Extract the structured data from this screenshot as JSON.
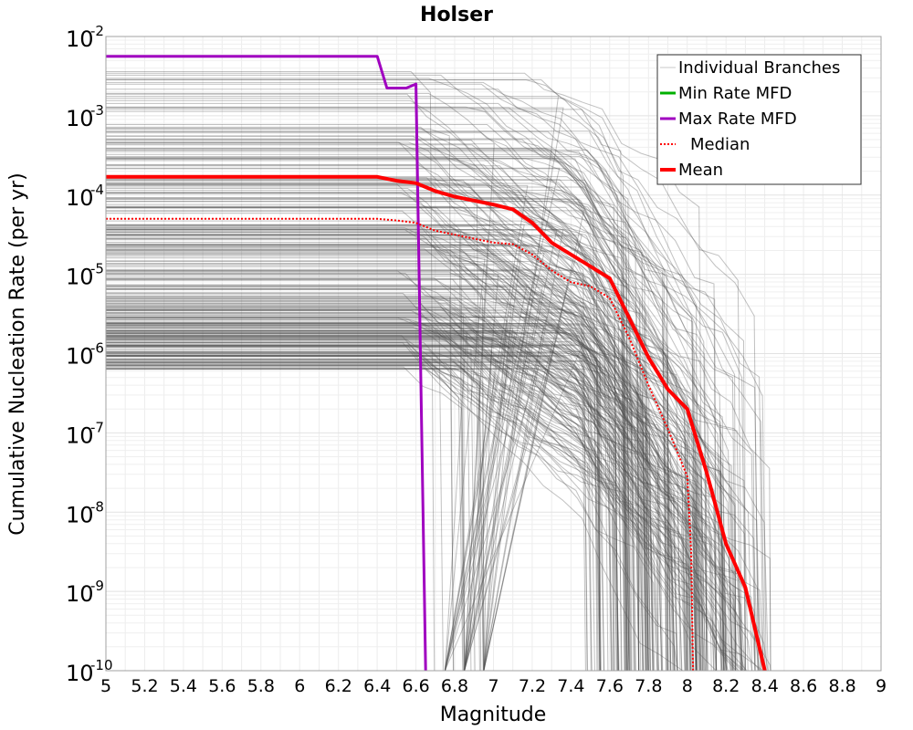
{
  "chart_data": {
    "type": "line",
    "title": "Holser",
    "xlabel": "Magnitude",
    "ylabel": "Cumulative Nucleation Rate (per yr)",
    "xlim": [
      5,
      9
    ],
    "ylim_log10": [
      -10,
      -2
    ],
    "yscale": "log",
    "grid": true,
    "legend_position": "top-right",
    "x_ticks": [
      "5",
      "5.2",
      "5.4",
      "5.6",
      "5.8",
      "6",
      "6.2",
      "6.4",
      "6.6",
      "6.8",
      "7",
      "7.2",
      "7.4",
      "7.6",
      "7.8",
      "8",
      "8.2",
      "8.4",
      "8.6",
      "8.8",
      "9"
    ],
    "y_ticks": [
      {
        "base": "10",
        "exp": "-10",
        "value": -10
      },
      {
        "base": "10",
        "exp": "-9",
        "value": -9
      },
      {
        "base": "10",
        "exp": "-8",
        "value": -8
      },
      {
        "base": "10",
        "exp": "-7",
        "value": -7
      },
      {
        "base": "10",
        "exp": "-6",
        "value": -6
      },
      {
        "base": "10",
        "exp": "-5",
        "value": -5
      },
      {
        "base": "10",
        "exp": "-4",
        "value": -4
      },
      {
        "base": "10",
        "exp": "-3",
        "value": -3
      },
      {
        "base": "10",
        "exp": "-2",
        "value": -2
      }
    ],
    "legend": [
      {
        "label": "Individual Branches",
        "color": "#c8c8c8",
        "style": "thin"
      },
      {
        "label": "Min Rate MFD",
        "color": "#00b000",
        "style": "solid"
      },
      {
        "label": "Max Rate MFD",
        "color": "#a000c0",
        "style": "solid"
      },
      {
        "label": "Median",
        "color": "#ff0000",
        "style": "dotted"
      },
      {
        "label": "Mean",
        "color": "#ff0000",
        "style": "thick"
      }
    ],
    "series": [
      {
        "name": "Max Rate MFD",
        "color": "#a000c0",
        "x": [
          5.0,
          6.4,
          6.45,
          6.55,
          6.6,
          6.65
        ],
        "log10_y": [
          -2.25,
          -2.25,
          -2.65,
          -2.65,
          -2.6,
          -10
        ]
      },
      {
        "name": "Mean",
        "color": "#ff0000",
        "x": [
          5.0,
          6.4,
          6.5,
          6.6,
          6.7,
          6.8,
          7.0,
          7.1,
          7.2,
          7.3,
          7.4,
          7.5,
          7.6,
          7.7,
          7.8,
          7.9,
          8.0,
          8.1,
          8.2,
          8.3,
          8.4
        ],
        "log10_y": [
          -3.77,
          -3.77,
          -3.82,
          -3.85,
          -3.95,
          -4.02,
          -4.12,
          -4.18,
          -4.35,
          -4.6,
          -4.75,
          -4.9,
          -5.05,
          -5.55,
          -6.05,
          -6.45,
          -6.7,
          -7.5,
          -8.4,
          -8.95,
          -10
        ]
      },
      {
        "name": "Median",
        "color": "#ff0000",
        "x": [
          5.0,
          6.4,
          6.5,
          6.6,
          6.7,
          6.8,
          7.0,
          7.1,
          7.2,
          7.3,
          7.4,
          7.5,
          7.6,
          7.7,
          7.8,
          7.9,
          8.0,
          8.02,
          8.03
        ],
        "log10_y": [
          -4.3,
          -4.3,
          -4.32,
          -4.35,
          -4.45,
          -4.5,
          -4.6,
          -4.62,
          -4.75,
          -4.95,
          -5.1,
          -5.15,
          -5.3,
          -5.8,
          -6.4,
          -6.95,
          -7.55,
          -8.5,
          -10
        ]
      },
      {
        "name": "Min Rate MFD",
        "color": "#00b000",
        "x": [],
        "log10_y": []
      }
    ],
    "individual_branches": {
      "count": 320,
      "plateau_log10_range": [
        -6.25,
        -2.0
      ],
      "cutoff_magnitudes": [
        6.75,
        6.85,
        6.95,
        7.55,
        7.62,
        7.7,
        7.75,
        7.8,
        7.85,
        7.9,
        7.95,
        8.0,
        8.05,
        8.1,
        8.15,
        8.2,
        8.25,
        8.3,
        8.35,
        8.43
      ]
    }
  }
}
